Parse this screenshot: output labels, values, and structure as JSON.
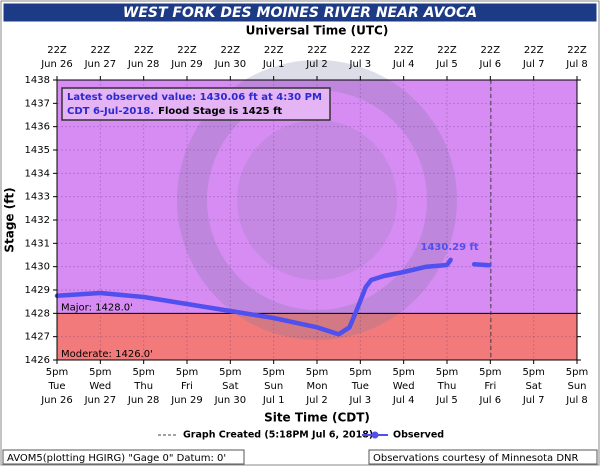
{
  "chart_data": {
    "type": "line",
    "title": "WEST FORK DES MOINES RIVER NEAR AVOCA",
    "top_axis_title": "Universal Time (UTC)",
    "x_axis_title": "Site Time (CDT)",
    "y_axis_title": "Stage (ft)",
    "xlim": [
      "2018-06-26T17:00",
      "2018-07-08T17:00"
    ],
    "xticks": [
      {
        "value": "2018-06-26T17:00",
        "label": "5pm",
        "weekday": "Tue",
        "date": "Jun 26",
        "utc": "22Z",
        "utc_date": "Jun 26"
      },
      {
        "value": "2018-06-27T17:00",
        "label": "5pm",
        "weekday": "Wed",
        "date": "Jun 27",
        "utc": "22Z",
        "utc_date": "Jun 27"
      },
      {
        "value": "2018-06-28T17:00",
        "label": "5pm",
        "weekday": "Thu",
        "date": "Jun 28",
        "utc": "22Z",
        "utc_date": "Jun 28"
      },
      {
        "value": "2018-06-29T17:00",
        "label": "5pm",
        "weekday": "Fri",
        "date": "Jun 29",
        "utc": "22Z",
        "utc_date": "Jun 29"
      },
      {
        "value": "2018-06-30T17:00",
        "label": "5pm",
        "weekday": "Sat",
        "date": "Jun 30",
        "utc": "22Z",
        "utc_date": "Jun 30"
      },
      {
        "value": "2018-07-01T17:00",
        "label": "5pm",
        "weekday": "Sun",
        "date": "Jul 1",
        "utc": "22Z",
        "utc_date": "Jul 1"
      },
      {
        "value": "2018-07-02T17:00",
        "label": "5pm",
        "weekday": "Mon",
        "date": "Jul 2",
        "utc": "22Z",
        "utc_date": "Jul 2"
      },
      {
        "value": "2018-07-03T17:00",
        "label": "5pm",
        "weekday": "Tue",
        "date": "Jul 3",
        "utc": "22Z",
        "utc_date": "Jul 3"
      },
      {
        "value": "2018-07-04T17:00",
        "label": "5pm",
        "weekday": "Wed",
        "date": "Jul 4",
        "utc": "22Z",
        "utc_date": "Jul 4"
      },
      {
        "value": "2018-07-05T17:00",
        "label": "5pm",
        "weekday": "Thu",
        "date": "Jul 5",
        "utc": "22Z",
        "utc_date": "Jul 5"
      },
      {
        "value": "2018-07-06T17:00",
        "label": "5pm",
        "weekday": "Fri",
        "date": "Jul 6",
        "utc": "22Z",
        "utc_date": "Jul 6"
      },
      {
        "value": "2018-07-07T17:00",
        "label": "5pm",
        "weekday": "Sat",
        "date": "Jul 7",
        "utc": "22Z",
        "utc_date": "Jul 7"
      },
      {
        "value": "2018-07-08T17:00",
        "label": "5pm",
        "weekday": "Sun",
        "date": "Jul 8",
        "utc": "22Z",
        "utc_date": "Jul 8"
      }
    ],
    "ylim": [
      1426,
      1438
    ],
    "yticks": [
      1426,
      1427,
      1428,
      1429,
      1430,
      1431,
      1432,
      1433,
      1434,
      1435,
      1436,
      1437,
      1438
    ],
    "grid": true,
    "x": [
      "2018-06-26T17:00",
      "2018-06-27T17:00",
      "2018-06-28T17:00",
      "2018-06-29T17:00",
      "2018-06-30T17:00",
      "2018-07-01T17:00",
      "2018-07-02T17:00",
      "2018-07-03T05:00",
      "2018-07-03T11:00",
      "2018-07-03T15:00",
      "2018-07-03T20:00",
      "2018-07-03T23:00",
      "2018-07-04T06:00",
      "2018-07-04T17:00",
      "2018-07-05T05:00",
      "2018-07-05T17:00",
      "2018-07-05T19:00",
      "2018-07-06T02:00",
      "2018-07-06T08:00",
      "2018-07-06T16:30"
    ],
    "series": [
      {
        "name": "Observed",
        "color": "#5050ee",
        "values": [
          1428.75,
          1428.87,
          1428.7,
          1428.4,
          1428.1,
          1427.8,
          1427.4,
          1427.1,
          1427.4,
          1428.14,
          1429.13,
          1429.43,
          1429.6,
          1429.77,
          1429.99,
          1430.07,
          1430.29,
          null,
          1430.1,
          1430.06
        ]
      }
    ],
    "annotations": [
      {
        "x": "2018-07-05T19:00",
        "value": 1430.29,
        "label": "1430.29 ft"
      }
    ],
    "thresholds": [
      {
        "value": 1428,
        "label": "Major: 1428.0'",
        "color": "#d68cf2"
      },
      {
        "value": 1426,
        "label": "Moderate: 1426.0'",
        "color": "#f27a7a"
      }
    ],
    "created_line": {
      "x": "2018-07-06T17:18",
      "label": "Graph Created (5:18PM Jul 6, 2018)"
    },
    "info": {
      "line1": "Latest observed value: 1430.06 ft at 4:30 PM",
      "line2_blue": "CDT 6-Jul-2018.",
      "line2_black": "Flood Stage is 1425 ft"
    },
    "footer_left": "AVOM5(plotting HGIRG) \"Gage 0\" Datum: 0'",
    "footer_right": "Observations courtesy of Minnesota DNR"
  }
}
